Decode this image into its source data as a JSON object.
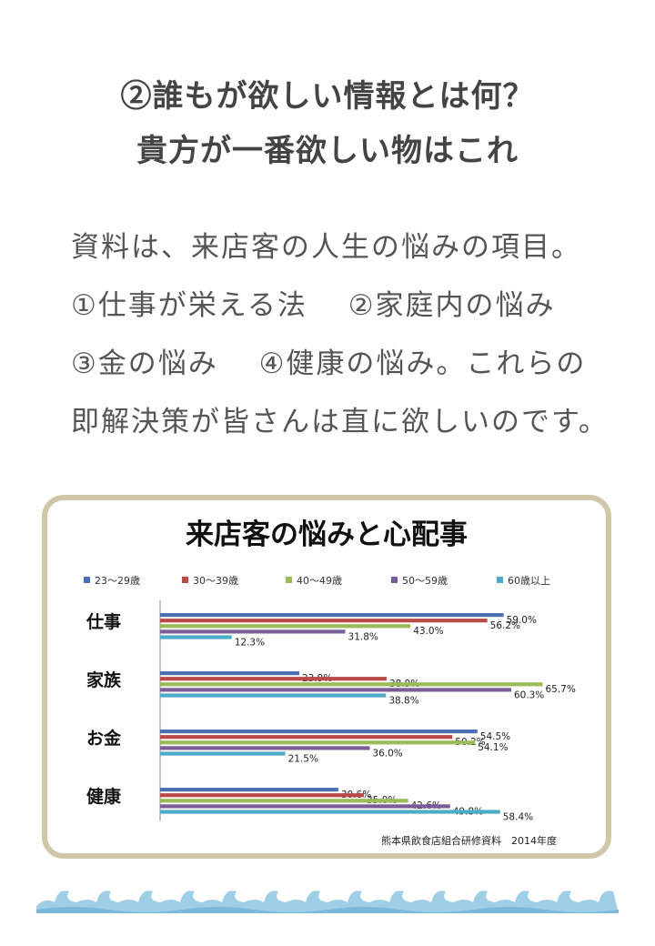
{
  "headings": [
    "②誰もが欲しい情報とは何？",
    "貴方が一番欲しい物はこれ"
  ],
  "body_lines": [
    "資料は、来店客の人生の悩みの項目。",
    "①仕事が栄える法　 ②家庭内の悩み",
    "③金の悩み　 ④健康の悩み。これらの",
    "即解決策が皆さんは直に欲しいのです。"
  ],
  "chart_data": {
    "type": "bar",
    "orientation": "horizontal",
    "title": "来店客の悩みと心配事",
    "categories": [
      "仕事",
      "家族",
      "お金",
      "健康"
    ],
    "series": [
      {
        "name": "23～29歳",
        "color": "#4a6fb5",
        "values": [
          59.0,
          23.9,
          54.5,
          30.6
        ]
      },
      {
        "name": "30～39歳",
        "color": "#b84a48",
        "values": [
          56.2,
          38.9,
          50.2,
          35.0
        ]
      },
      {
        "name": "40～49歳",
        "color": "#9bbb59",
        "values": [
          43.0,
          65.7,
          54.1,
          42.6
        ]
      },
      {
        "name": "50～59歳",
        "color": "#7a5c9a",
        "values": [
          31.8,
          60.3,
          36.0,
          49.8
        ]
      },
      {
        "name": "60歳以上",
        "color": "#4bacc6",
        "values": [
          12.3,
          38.8,
          21.5,
          58.4
        ]
      }
    ],
    "legend_position": "top",
    "source": "熊本県飲食店組合研修資料　2014年度"
  }
}
